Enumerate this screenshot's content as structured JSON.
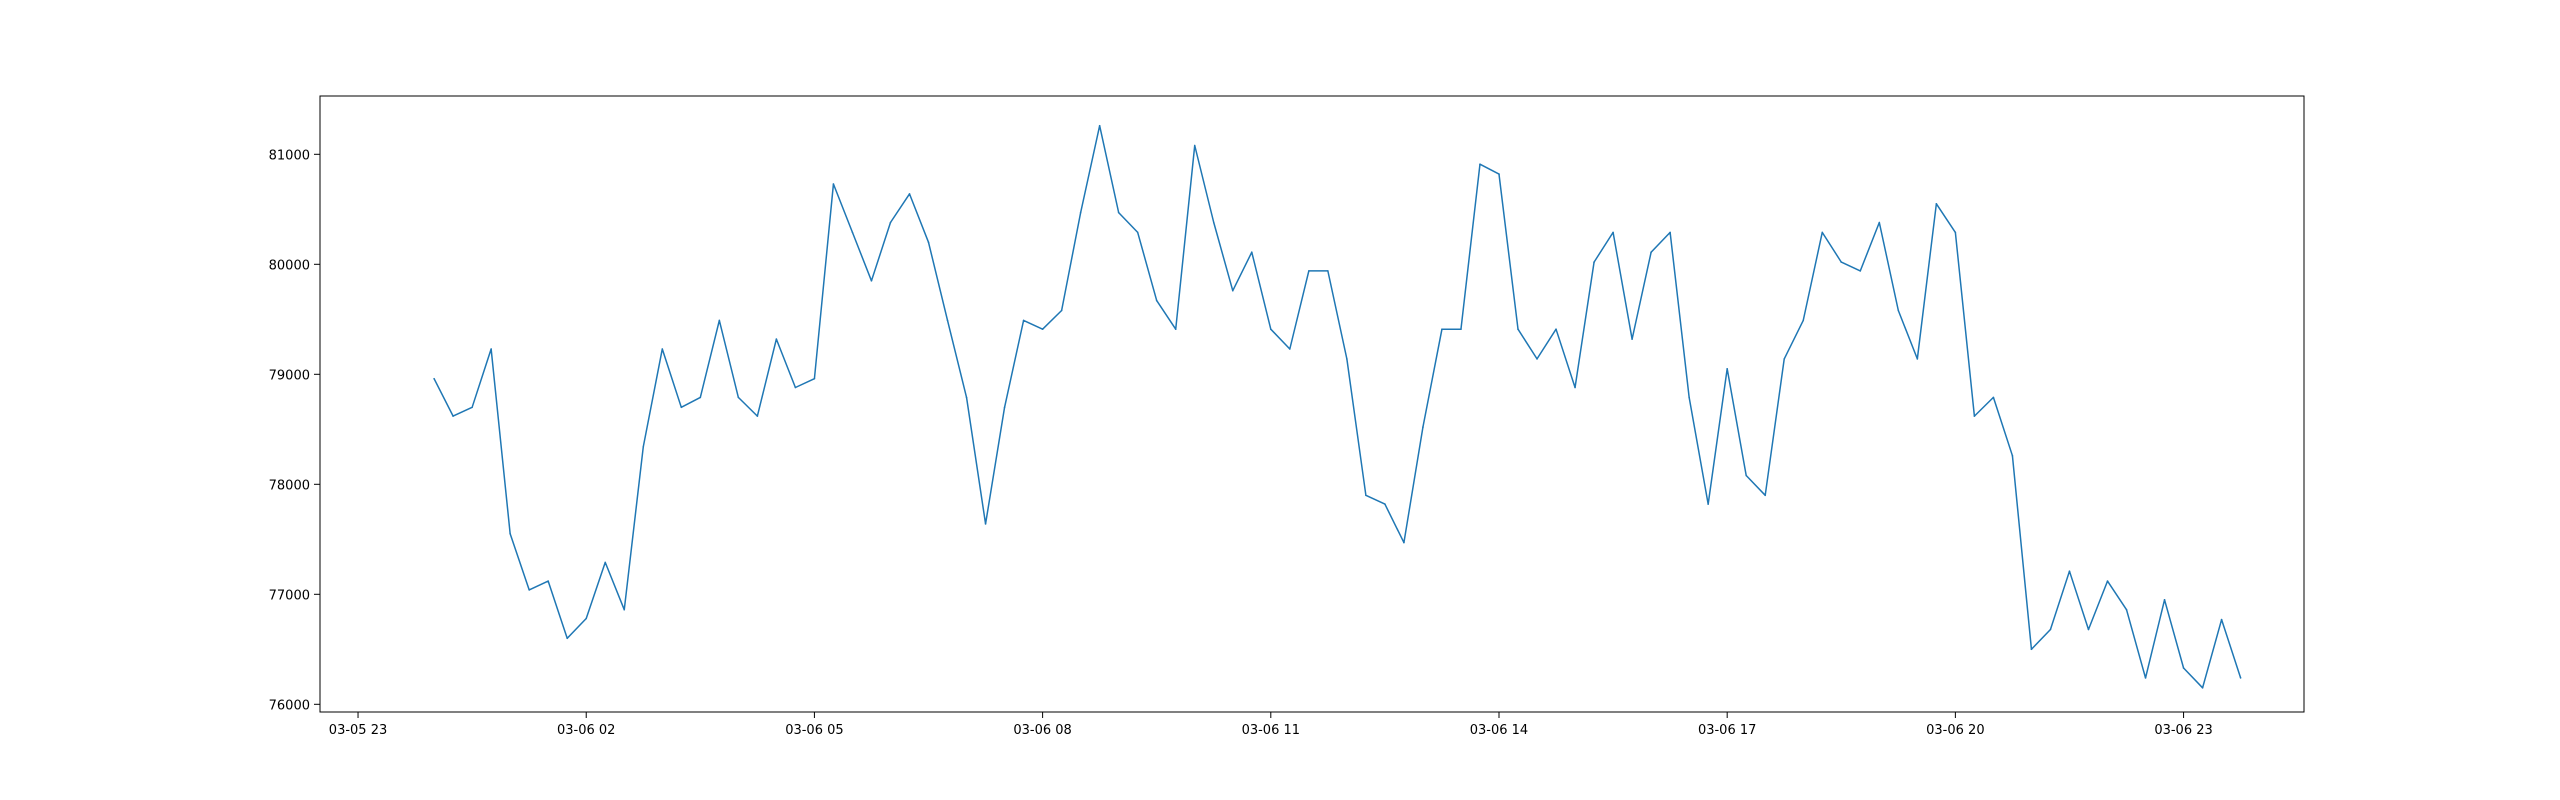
{
  "chart_data": {
    "type": "line",
    "title": "",
    "xlabel": "",
    "ylabel": "",
    "grid": false,
    "legend": "none",
    "x_axis_type": "datetime",
    "xlim": [
      "2025-03-05 22:30",
      "2025-03-07 00:35"
    ],
    "ylim": [
      75930,
      81530
    ],
    "x_ticks": [
      {
        "value": "2025-03-05 23:00",
        "label": "03-05 23"
      },
      {
        "value": "2025-03-06 02:00",
        "label": "03-06 02"
      },
      {
        "value": "2025-03-06 05:00",
        "label": "03-06 05"
      },
      {
        "value": "2025-03-06 08:00",
        "label": "03-06 08"
      },
      {
        "value": "2025-03-06 11:00",
        "label": "03-06 11"
      },
      {
        "value": "2025-03-06 14:00",
        "label": "03-06 14"
      },
      {
        "value": "2025-03-06 17:00",
        "label": "03-06 17"
      },
      {
        "value": "2025-03-06 20:00",
        "label": "03-06 20"
      },
      {
        "value": "2025-03-06 23:00",
        "label": "03-06 23"
      }
    ],
    "y_ticks": [
      76000,
      77000,
      78000,
      79000,
      80000,
      81000
    ],
    "series": [
      {
        "color": "#1f77b4",
        "x": [
          "2025-03-06 00:00",
          "2025-03-06 00:15",
          "2025-03-06 00:30",
          "2025-03-06 00:45",
          "2025-03-06 01:00",
          "2025-03-06 01:15",
          "2025-03-06 01:30",
          "2025-03-06 01:45",
          "2025-03-06 02:00",
          "2025-03-06 02:15",
          "2025-03-06 02:30",
          "2025-03-06 02:45",
          "2025-03-06 03:00",
          "2025-03-06 03:15",
          "2025-03-06 03:30",
          "2025-03-06 03:45",
          "2025-03-06 04:00",
          "2025-03-06 04:15",
          "2025-03-06 04:30",
          "2025-03-06 04:45",
          "2025-03-06 05:00",
          "2025-03-06 05:15",
          "2025-03-06 05:30",
          "2025-03-06 05:45",
          "2025-03-06 06:00",
          "2025-03-06 06:15",
          "2025-03-06 06:30",
          "2025-03-06 06:45",
          "2025-03-06 07:00",
          "2025-03-06 07:15",
          "2025-03-06 07:30",
          "2025-03-06 07:45",
          "2025-03-06 08:00",
          "2025-03-06 08:15",
          "2025-03-06 08:30",
          "2025-03-06 08:45",
          "2025-03-06 09:00",
          "2025-03-06 09:15",
          "2025-03-06 09:30",
          "2025-03-06 09:45",
          "2025-03-06 10:00",
          "2025-03-06 10:15",
          "2025-03-06 10:30",
          "2025-03-06 10:45",
          "2025-03-06 11:00",
          "2025-03-06 11:15",
          "2025-03-06 11:30",
          "2025-03-06 11:45",
          "2025-03-06 12:00",
          "2025-03-06 12:15",
          "2025-03-06 12:30",
          "2025-03-06 12:45",
          "2025-03-06 13:00",
          "2025-03-06 13:15",
          "2025-03-06 13:30",
          "2025-03-06 13:45",
          "2025-03-06 14:00",
          "2025-03-06 14:15",
          "2025-03-06 14:30",
          "2025-03-06 14:45",
          "2025-03-06 15:00",
          "2025-03-06 15:15",
          "2025-03-06 15:30",
          "2025-03-06 15:45",
          "2025-03-06 16:00",
          "2025-03-06 16:15",
          "2025-03-06 16:30",
          "2025-03-06 16:45",
          "2025-03-06 17:00",
          "2025-03-06 17:15",
          "2025-03-06 17:30",
          "2025-03-06 17:45",
          "2025-03-06 18:00",
          "2025-03-06 18:15",
          "2025-03-06 18:30",
          "2025-03-06 18:45",
          "2025-03-06 19:00",
          "2025-03-06 19:15",
          "2025-03-06 19:30",
          "2025-03-06 19:45",
          "2025-03-06 20:00",
          "2025-03-06 20:15",
          "2025-03-06 20:30",
          "2025-03-06 20:45",
          "2025-03-06 21:00",
          "2025-03-06 21:15",
          "2025-03-06 21:30",
          "2025-03-06 21:45",
          "2025-03-06 22:00",
          "2025-03-06 22:15",
          "2025-03-06 22:30",
          "2025-03-06 22:45",
          "2025-03-06 23:00",
          "2025-03-06 23:15",
          "2025-03-06 23:30",
          "2025-03-06 23:45"
        ],
        "values": [
          78960,
          78620,
          78700,
          79230,
          77550,
          77040,
          77120,
          76600,
          76780,
          77290,
          76860,
          78340,
          79230,
          78700,
          78790,
          79490,
          78790,
          78620,
          79320,
          78880,
          78960,
          80730,
          80290,
          79850,
          80380,
          80640,
          80200,
          79490,
          78790,
          77640,
          78700,
          79490,
          79410,
          79580,
          80470,
          81260,
          80470,
          80290,
          79670,
          79410,
          81080,
          80380,
          79760,
          80110,
          79410,
          79230,
          79940,
          79940,
          79140,
          77900,
          77820,
          77470,
          78520,
          79410,
          79410,
          80910,
          80820,
          79410,
          79140,
          79410,
          78880,
          80020,
          80290,
          79320,
          80110,
          80290,
          78790,
          77820,
          79050,
          78080,
          77900,
          79140,
          79490,
          80290,
          80020,
          79940,
          80380,
          79580,
          79140,
          80550,
          80290,
          78620,
          78790,
          78260,
          76500,
          76680,
          77210,
          76680,
          77120,
          76860,
          76240,
          76950,
          76330,
          76150,
          76770,
          76240
        ]
      }
    ]
  }
}
